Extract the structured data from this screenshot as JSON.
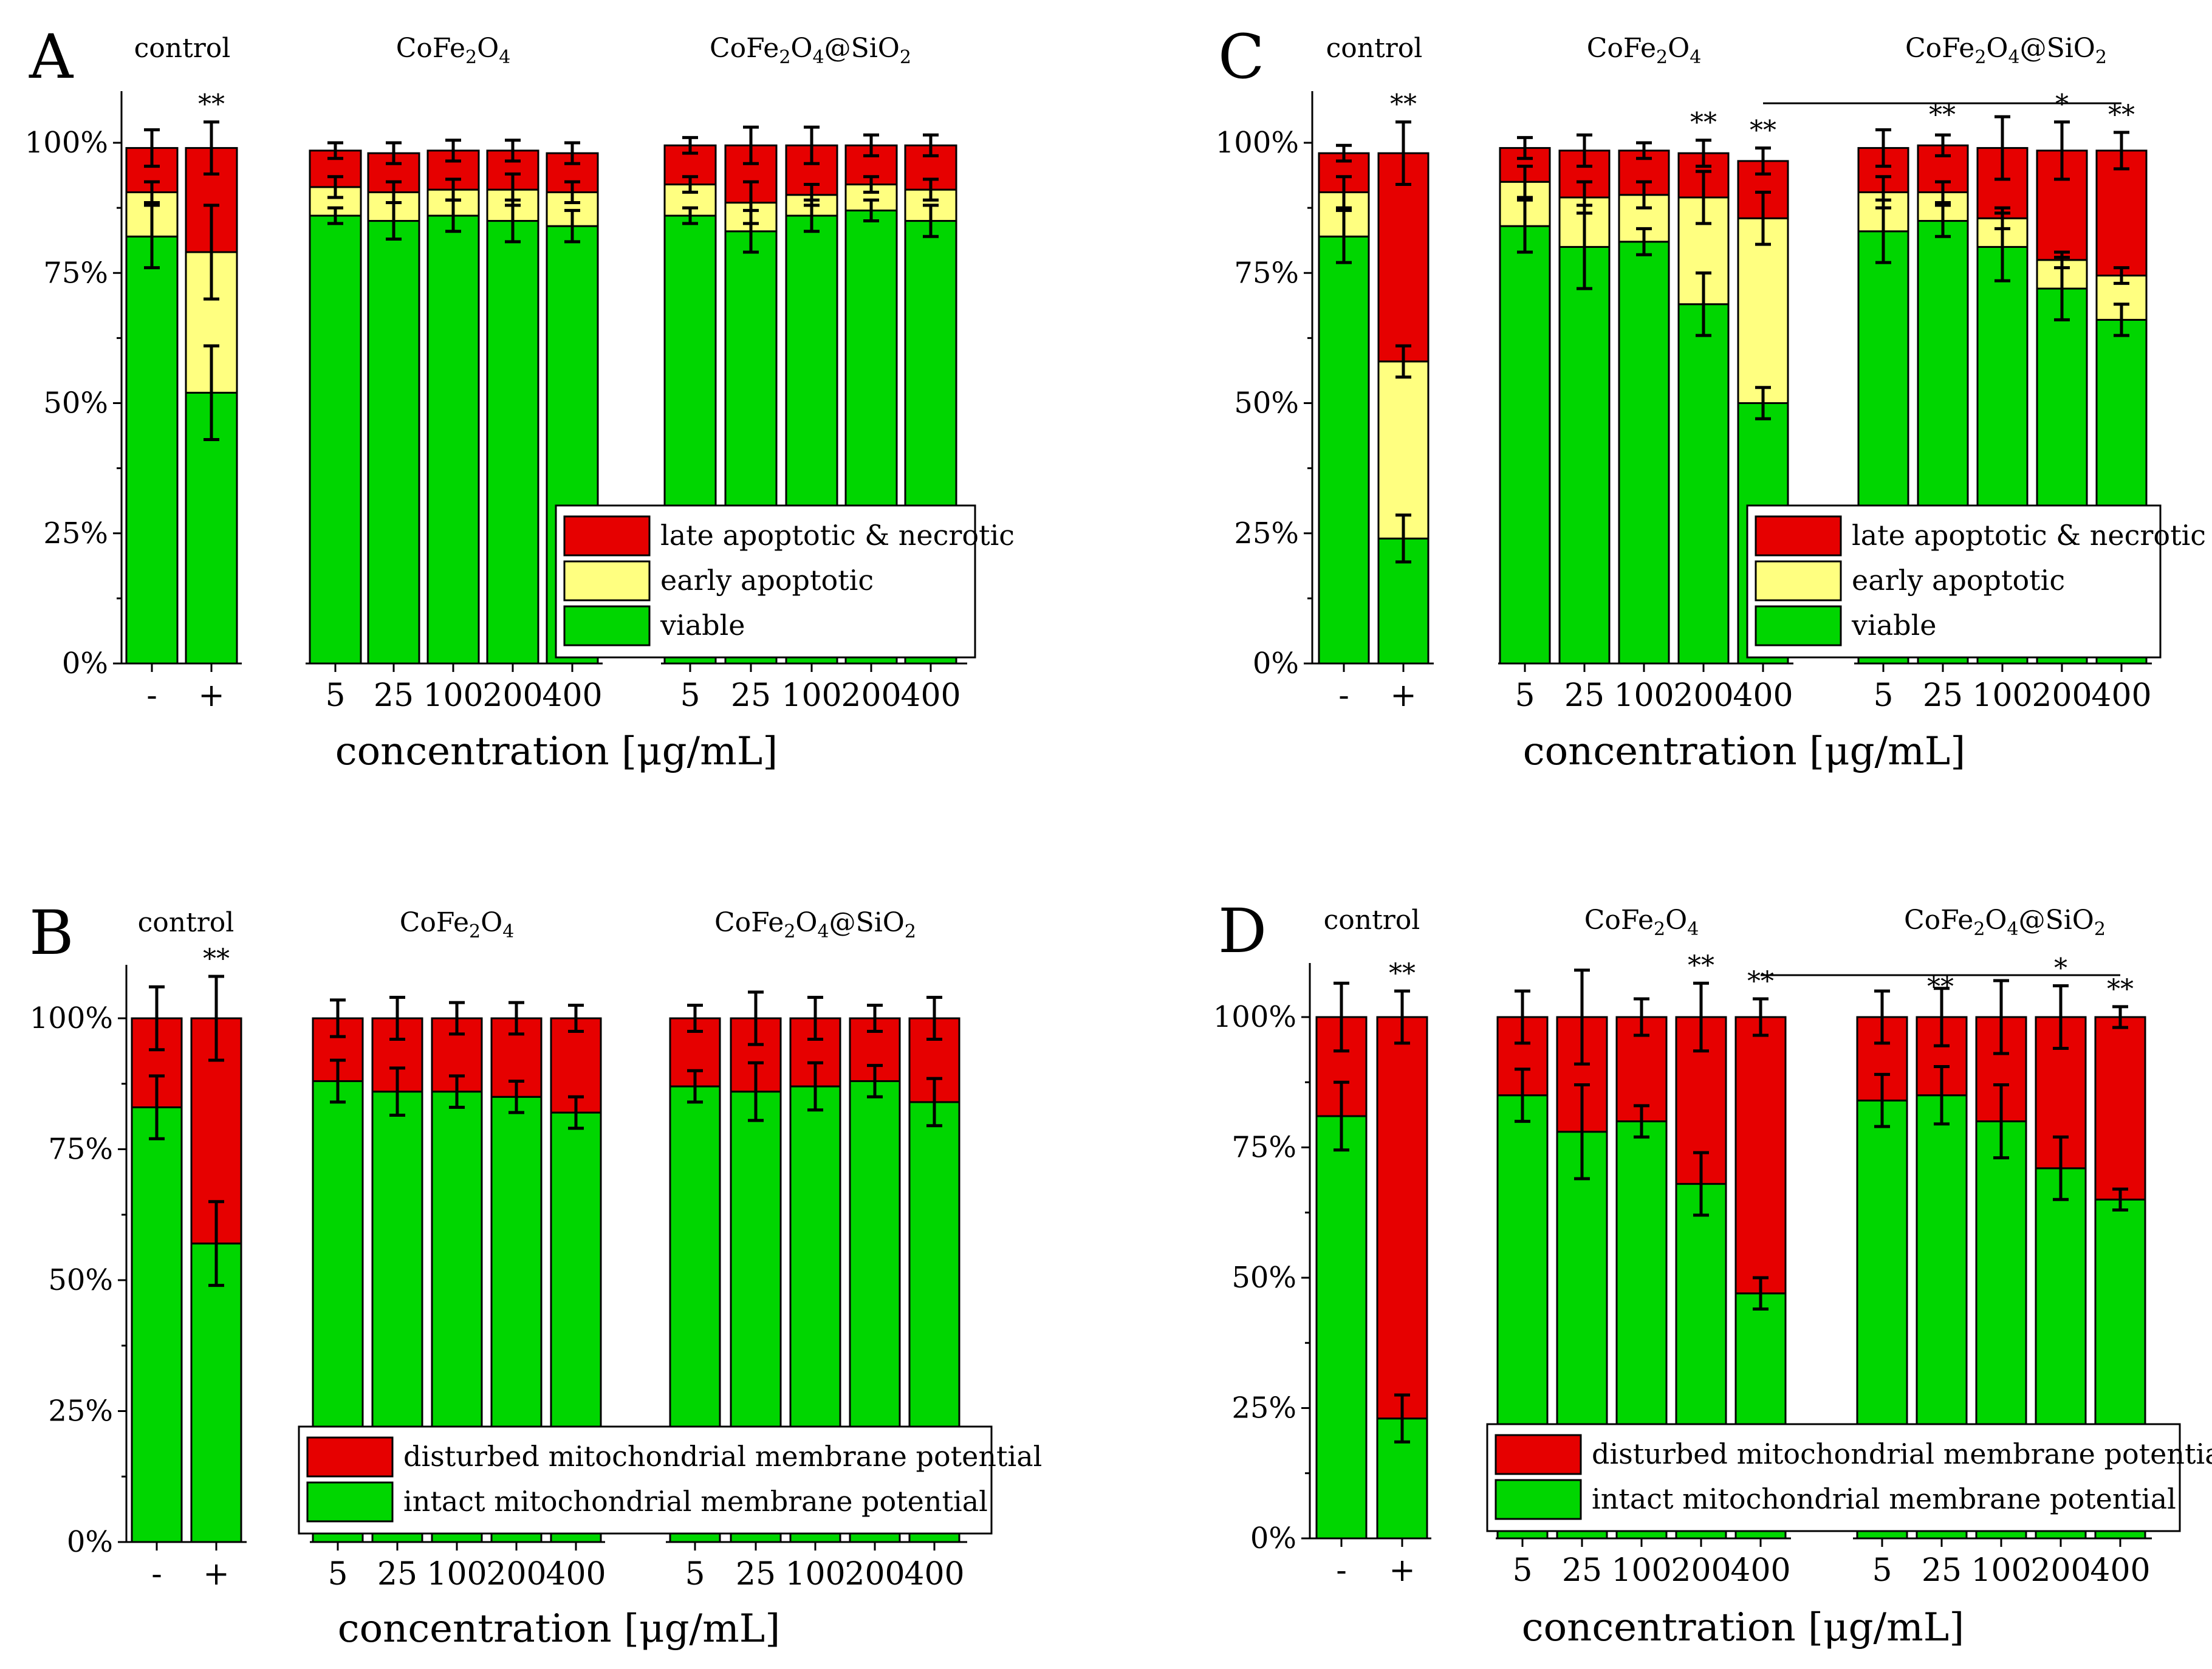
{
  "figure": {
    "colors": {
      "late": "#e60000",
      "early": "#ffff80",
      "viable": "#00d600"
    }
  },
  "chart_data": [
    {
      "panel": "A",
      "type": "bar",
      "stacked": true,
      "ylim": [
        0,
        110
      ],
      "yticks": [
        {
          "value": 0,
          "label": "0%"
        },
        {
          "value": 25,
          "label": "25%"
        },
        {
          "value": 50,
          "label": "50%"
        },
        {
          "value": 75,
          "label": "75%"
        },
        {
          "value": 100,
          "label": "100%"
        }
      ],
      "xlabel": "concentration [μg/mL]",
      "groups": [
        {
          "label": "control",
          "label_parts": [
            "control"
          ]
        },
        {
          "label": "CoFe2O4",
          "label_parts": [
            "CoFe",
            "2",
            "O",
            "4",
            ""
          ]
        },
        {
          "label": "CoFe2O4@SiO2",
          "label_parts": [
            "CoFe",
            "2",
            "O",
            "4",
            "@SiO",
            "2",
            ""
          ]
        }
      ],
      "categories": [
        "-",
        "+",
        "5",
        "25",
        "100",
        "200",
        "400",
        "5",
        "25",
        "100",
        "200",
        "400"
      ],
      "category_group": [
        0,
        0,
        1,
        1,
        1,
        1,
        1,
        2,
        2,
        2,
        2,
        2
      ],
      "series": [
        {
          "name": "viable",
          "color": "#00d600",
          "values": [
            82,
            52,
            86,
            85,
            86,
            85,
            84,
            86,
            83,
            86,
            87,
            85
          ],
          "errors": [
            6,
            9,
            1.5,
            3.5,
            3,
            4,
            3,
            1.5,
            4,
            3,
            2,
            3
          ]
        },
        {
          "name": "early apoptotic",
          "color": "#ffff80",
          "values": [
            8.5,
            27,
            5.5,
            5.5,
            5,
            6,
            6.5,
            6,
            5.5,
            4,
            5,
            6
          ],
          "errors": [
            2,
            9,
            2,
            2,
            2,
            3,
            2,
            1.5,
            4,
            2,
            1.5,
            2
          ]
        },
        {
          "name": "late apoptotic & necrotic",
          "color": "#e60000",
          "values": [
            8.5,
            20,
            7,
            7.5,
            7.5,
            7.5,
            7.5,
            7.5,
            11,
            9.5,
            7.5,
            8.5
          ],
          "errors": [
            3.5,
            5,
            1.5,
            2,
            2,
            2,
            2,
            1.5,
            3.5,
            3.5,
            2,
            2
          ]
        }
      ],
      "legend": [
        "late apoptotic & necrotic",
        "early apoptotic",
        "viable"
      ],
      "legend_position": "bottom-right",
      "significance": [
        {
          "index": 1,
          "label": "**"
        }
      ],
      "bracket": null
    },
    {
      "panel": "B",
      "type": "bar",
      "stacked": true,
      "ylim": [
        0,
        110
      ],
      "yticks": [
        {
          "value": 0,
          "label": "0%"
        },
        {
          "value": 25,
          "label": "25%"
        },
        {
          "value": 50,
          "label": "50%"
        },
        {
          "value": 75,
          "label": "75%"
        },
        {
          "value": 100,
          "label": "100%"
        }
      ],
      "xlabel": "concentration [μg/mL]",
      "groups": [
        {
          "label": "control",
          "label_parts": [
            "control"
          ]
        },
        {
          "label": "CoFe2O4",
          "label_parts": [
            "CoFe",
            "2",
            "O",
            "4",
            ""
          ]
        },
        {
          "label": "CoFe2O4@SiO2",
          "label_parts": [
            "CoFe",
            "2",
            "O",
            "4",
            "@SiO",
            "2",
            ""
          ]
        }
      ],
      "categories": [
        "-",
        "+",
        "5",
        "25",
        "100",
        "200",
        "400",
        "5",
        "25",
        "100",
        "200",
        "400"
      ],
      "category_group": [
        0,
        0,
        1,
        1,
        1,
        1,
        1,
        2,
        2,
        2,
        2,
        2
      ],
      "series": [
        {
          "name": "intact mitochondrial membrane potential",
          "color": "#00d600",
          "values": [
            83,
            57,
            88,
            86,
            86,
            85,
            82,
            87,
            86,
            87,
            88,
            84
          ],
          "errors": [
            6,
            8,
            4,
            4.5,
            3,
            3,
            3,
            3,
            5.5,
            4.5,
            3,
            4.5
          ]
        },
        {
          "name": "disturbed mitochondrial membrane potential",
          "color": "#e60000",
          "values": [
            17,
            43,
            12,
            14,
            14,
            15,
            18,
            13,
            14,
            13,
            12,
            16
          ],
          "errors": [
            6,
            8,
            3.5,
            4,
            3,
            3,
            2.5,
            2.5,
            5,
            4,
            2.5,
            4
          ]
        }
      ],
      "legend": [
        "disturbed mitochondrial membrane potential",
        "intact mitochondrial membrane potential"
      ],
      "legend_position": "bottom-right",
      "significance": [
        {
          "index": 1,
          "label": "**"
        }
      ],
      "bracket": null
    },
    {
      "panel": "C",
      "type": "bar",
      "stacked": true,
      "ylim": [
        0,
        110
      ],
      "yticks": [
        {
          "value": 0,
          "label": "0%"
        },
        {
          "value": 25,
          "label": "25%"
        },
        {
          "value": 50,
          "label": "50%"
        },
        {
          "value": 75,
          "label": "75%"
        },
        {
          "value": 100,
          "label": "100%"
        }
      ],
      "xlabel": "concentration [μg/mL]",
      "groups": [
        {
          "label": "control",
          "label_parts": [
            "control"
          ]
        },
        {
          "label": "CoFe2O4",
          "label_parts": [
            "CoFe",
            "2",
            "O",
            "4",
            ""
          ]
        },
        {
          "label": "CoFe2O4@SiO2",
          "label_parts": [
            "CoFe",
            "2",
            "O",
            "4",
            "@SiO",
            "2",
            ""
          ]
        }
      ],
      "categories": [
        "-",
        "+",
        "5",
        "25",
        "100",
        "200",
        "400",
        "5",
        "25",
        "100",
        "200",
        "400"
      ],
      "category_group": [
        0,
        0,
        1,
        1,
        1,
        1,
        1,
        2,
        2,
        2,
        2,
        2
      ],
      "series": [
        {
          "name": "viable",
          "color": "#00d600",
          "values": [
            82,
            24,
            84,
            80,
            81,
            69,
            50,
            83,
            85,
            80,
            72,
            66
          ],
          "errors": [
            5,
            4.5,
            5,
            8,
            2.5,
            6,
            3,
            6,
            3,
            6.5,
            6,
            3
          ]
        },
        {
          "name": "early apoptotic",
          "color": "#ffff80",
          "values": [
            8.5,
            34,
            8.5,
            9.5,
            9,
            20.5,
            35.5,
            7.5,
            5.5,
            5.5,
            5.5,
            8.5
          ],
          "errors": [
            3,
            3,
            3,
            3,
            2.5,
            5,
            5,
            3,
            2,
            2,
            1.5,
            1.5
          ]
        },
        {
          "name": "late apoptotic & necrotic",
          "color": "#e60000",
          "values": [
            7.5,
            40,
            6.5,
            9,
            8.5,
            8.5,
            11,
            8.5,
            9,
            13.5,
            21,
            24
          ],
          "errors": [
            1.5,
            6,
            2,
            3,
            1.5,
            2.5,
            2.5,
            3.5,
            2,
            6,
            5.5,
            3.5
          ]
        }
      ],
      "legend": [
        "late apoptotic & necrotic",
        "early apoptotic",
        "viable"
      ],
      "legend_position": "bottom-right",
      "significance": [
        {
          "index": 1,
          "label": "**"
        },
        {
          "index": 5,
          "label": "**"
        },
        {
          "index": 6,
          "label": "**"
        },
        {
          "index": 10,
          "label": "*"
        },
        {
          "index": 11,
          "label": "**"
        }
      ],
      "bracket": {
        "from": 6,
        "to": 11,
        "label": "**"
      }
    },
    {
      "panel": "D",
      "type": "bar",
      "stacked": true,
      "ylim": [
        0,
        110
      ],
      "yticks": [
        {
          "value": 0,
          "label": "0%"
        },
        {
          "value": 25,
          "label": "25%"
        },
        {
          "value": 50,
          "label": "50%"
        },
        {
          "value": 75,
          "label": "75%"
        },
        {
          "value": 100,
          "label": "100%"
        }
      ],
      "xlabel": "concentration [μg/mL]",
      "groups": [
        {
          "label": "control",
          "label_parts": [
            "control"
          ]
        },
        {
          "label": "CoFe2O4",
          "label_parts": [
            "CoFe",
            "2",
            "O",
            "4",
            ""
          ]
        },
        {
          "label": "CoFe2O4@SiO2",
          "label_parts": [
            "CoFe",
            "2",
            "O",
            "4",
            "@SiO",
            "2",
            ""
          ]
        }
      ],
      "categories": [
        "-",
        "+",
        "5",
        "25",
        "100",
        "200",
        "400",
        "5",
        "25",
        "100",
        "200",
        "400"
      ],
      "category_group": [
        0,
        0,
        1,
        1,
        1,
        1,
        1,
        2,
        2,
        2,
        2,
        2
      ],
      "series": [
        {
          "name": "intact mitochondrial membrane potential",
          "color": "#00d600",
          "values": [
            81,
            23,
            85,
            78,
            80,
            68,
            47,
            84,
            85,
            80,
            71,
            65
          ],
          "errors": [
            6.5,
            4.5,
            5,
            9,
            3,
            6,
            3,
            5,
            5.5,
            7,
            6,
            2
          ]
        },
        {
          "name": "disturbed mitochondrial membrane potential",
          "color": "#e60000",
          "values": [
            19,
            77,
            15,
            22,
            20,
            32,
            53,
            16,
            15,
            20,
            29,
            35
          ],
          "errors": [
            6.5,
            5,
            5,
            9,
            3.5,
            6.5,
            3.5,
            5,
            5.5,
            7,
            6,
            2
          ]
        }
      ],
      "legend": [
        "disturbed mitochondrial membrane potential",
        "intact mitochondrial membrane potential"
      ],
      "legend_position": "bottom-right",
      "significance": [
        {
          "index": 1,
          "label": "**"
        },
        {
          "index": 5,
          "label": "**"
        },
        {
          "index": 6,
          "label": "**"
        },
        {
          "index": 10,
          "label": "*"
        },
        {
          "index": 11,
          "label": "**"
        }
      ],
      "bracket": {
        "from": 6,
        "to": 11,
        "label": "**"
      }
    }
  ]
}
